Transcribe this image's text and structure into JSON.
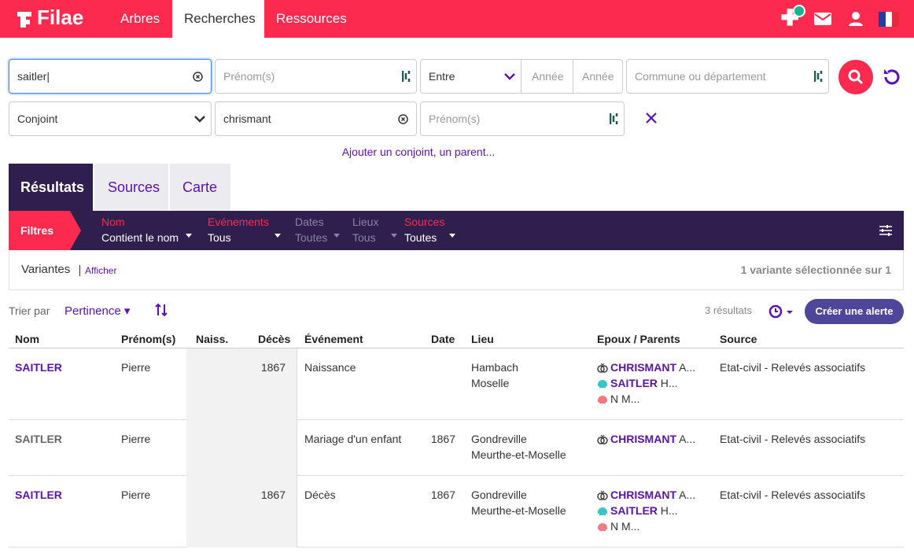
{
  "nav": {
    "logo": "Filae",
    "tabs": [
      "Arbres",
      "Recherches",
      "Ressources"
    ]
  },
  "search": {
    "name": "saitler",
    "firstname_placeholder": "Prénom(s)",
    "period": "Entre",
    "year_from": "Année",
    "year_to": "Année",
    "place_placeholder": "Commune ou département",
    "relation": "Conjoint",
    "relation_name": "chrismant",
    "relation_firstname_placeholder": "Prénom(s)",
    "add_link": "Ajouter un conjoint, un parent..."
  },
  "tabs": [
    "Résultats",
    "Sources",
    "Carte"
  ],
  "filters": {
    "label": "Filtres",
    "items": [
      {
        "name": "Nom",
        "value": "Contient le nom",
        "active": true
      },
      {
        "name": "Evénements",
        "value": "Tous",
        "active": true
      },
      {
        "name": "Dates",
        "value": "Toutes",
        "active": false
      },
      {
        "name": "Lieux",
        "value": "Tous",
        "active": false
      },
      {
        "name": "Sources",
        "value": "Toutes",
        "active": true
      }
    ]
  },
  "variants": {
    "label": "Variantes",
    "link": "Afficher",
    "summary": "1 variante sélectionnée sur 1"
  },
  "sort": {
    "label": "Trier par",
    "value": "Pertinence",
    "count": "3 résultats",
    "alert": "Créer une alerte"
  },
  "table": {
    "columns": [
      "Nom",
      "Prénom(s)",
      "Naiss.",
      "Décès",
      "Événement",
      "Date",
      "Lieu",
      "Epoux / Parents",
      "Source"
    ],
    "rows": [
      {
        "nom": "SAITLER",
        "link": true,
        "prenom": "Pierre",
        "deces": 1867,
        "evenement": "Naissance",
        "lieu": [
          "Hambach",
          "Moselle"
        ],
        "relations": [
          {
            "bold": "CHRISMANT",
            "rest": "A..."
          },
          {
            "bold": "SAITLER",
            "rest": "H..."
          },
          {
            "rest": "N M..."
          }
        ],
        "source": "Etat-civil - Relevés associatifs"
      },
      {
        "nom": "SAITLER",
        "link": false,
        "prenom": "Pierre",
        "evenement": "Mariage d'un enfant",
        "date": 1867,
        "lieu": [
          "Gondreville",
          "Meurthe-et-Moselle"
        ],
        "relations": [
          {
            "bold": "CHRISMANT",
            "rest": "A..."
          }
        ],
        "source": "Etat-civil - Relevés associatifs"
      },
      {
        "nom": "SAITLER",
        "link": true,
        "prenom": "Pierre",
        "deces": 1867,
        "evenement": "Décès",
        "date": 1867,
        "lieu": [
          "Gondreville",
          "Meurthe-et-Moselle"
        ],
        "relations": [
          {
            "bold": "CHRISMANT",
            "rest": "A..."
          },
          {
            "bold": "SAITLER",
            "rest": "H..."
          },
          {
            "rest": "N M..."
          }
        ],
        "source": "Etat-civil - Relevés associatifs"
      }
    ]
  }
}
